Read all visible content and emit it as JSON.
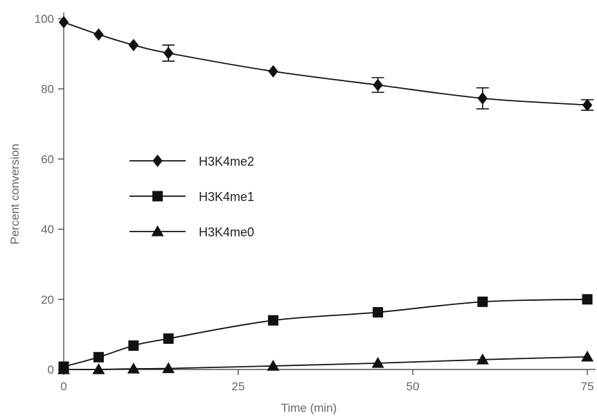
{
  "chart_data": {
    "type": "line",
    "title": "",
    "xlabel": "Time (min)",
    "ylabel": "Percent conversion",
    "xlim": [
      0,
      77
    ],
    "ylim": [
      0,
      100
    ],
    "x_ticks": [
      0,
      25,
      50,
      75
    ],
    "y_ticks": [
      0,
      20,
      40,
      60,
      80,
      100
    ],
    "grid": false,
    "legend_position": "center-left",
    "series": [
      {
        "name": "H3K4me2",
        "marker": "diamond",
        "color": "#111111",
        "x": [
          0,
          5,
          10,
          15,
          30,
          45,
          60,
          75
        ],
        "values": [
          99,
          95.5,
          92.5,
          90.2,
          85,
          81.1,
          77.3,
          75.4
        ],
        "error": [
          null,
          null,
          null,
          2.3,
          null,
          2.1,
          3.0,
          1.5
        ]
      },
      {
        "name": "H3K4me1",
        "marker": "square",
        "color": "#111111",
        "x": [
          0,
          5,
          10,
          15,
          30,
          45,
          60,
          75
        ],
        "values": [
          0.8,
          3.5,
          6.8,
          8.8,
          14,
          16.3,
          19.3,
          20
        ],
        "error": [
          null,
          null,
          null,
          null,
          null,
          null,
          null,
          null
        ]
      },
      {
        "name": "H3K4me0",
        "marker": "triangle",
        "color": "#111111",
        "x": [
          0,
          5,
          10,
          15,
          30,
          45,
          60,
          75
        ],
        "values": [
          0,
          0,
          0.2,
          0.3,
          1,
          1.8,
          2.8,
          3.6
        ],
        "error": [
          null,
          null,
          null,
          null,
          null,
          null,
          null,
          null
        ]
      }
    ]
  }
}
